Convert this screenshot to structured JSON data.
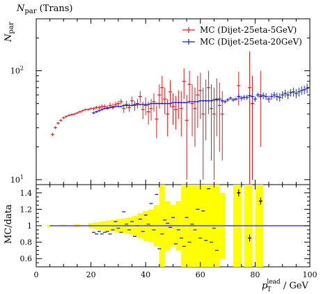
{
  "page": {
    "title": "N",
    "title_sub": "par",
    "title_rest": " (Trans)"
  },
  "upper_ylabel": "N",
  "upper_ylabel_sub": "par",
  "lower_ylabel": "MC/data",
  "xlabel_p": "p",
  "xlabel_sub": "T",
  "xlabel_sup": "lead",
  "xlabel_rest": " / GeV",
  "colors": {
    "series_red": "#e41a1c",
    "series_blue": "#1a1ae4",
    "ratio_band": "#ffff00",
    "ratio_line": "#1a1ae4"
  },
  "chart_data": [
    {
      "type": "scatter",
      "title": "Npar (Trans)",
      "xlabel": "",
      "ylabel": "Npar",
      "xlim": [
        0,
        100
      ],
      "ylim": [
        9,
        300
      ],
      "yscale": "log",
      "xtick_labels": [],
      "ytick_labels": [
        "10^1",
        "10^2"
      ],
      "legend_placement": "top-right",
      "series": [
        {
          "name": "MC (Dijet-25eta-5GeV)",
          "color": "#e41a1c",
          "points": [
            [
              6,
              26,
              1
            ],
            [
              7,
              30,
              1
            ],
            [
              8,
              33,
              1
            ],
            [
              9,
              35,
              1
            ],
            [
              10,
              37,
              1
            ],
            [
              11,
              38,
              1
            ],
            [
              12,
              39,
              1
            ],
            [
              13,
              39.5,
              1
            ],
            [
              14,
              40,
              1
            ],
            [
              15,
              41,
              1
            ],
            [
              16,
              42,
              1
            ],
            [
              17,
              43,
              1
            ],
            [
              18,
              44,
              1
            ],
            [
              19,
              44,
              1
            ],
            [
              20,
              45,
              1
            ],
            [
              21,
              45,
              1.5
            ],
            [
              22,
              46,
              1.5
            ],
            [
              23,
              46,
              2
            ],
            [
              24,
              47,
              2
            ],
            [
              25,
              47,
              2
            ],
            [
              26,
              46,
              2
            ],
            [
              27,
              48,
              3
            ],
            [
              28,
              47,
              3
            ],
            [
              29,
              49,
              3
            ],
            [
              30,
              50,
              3
            ],
            [
              31,
              52,
              3
            ],
            [
              32,
              45,
              4
            ],
            [
              33,
              49,
              4
            ],
            [
              34,
              46,
              4
            ],
            [
              35,
              53,
              5
            ],
            [
              36,
              48,
              5
            ],
            [
              37,
              50,
              5
            ],
            [
              38,
              58,
              7
            ],
            [
              39,
              44,
              8
            ],
            [
              40,
              48,
              9
            ],
            [
              41,
              42,
              10
            ],
            [
              42,
              45,
              10
            ],
            [
              43,
              52,
              10
            ],
            [
              44,
              36,
              12
            ],
            [
              45,
              60,
              15
            ],
            [
              46,
              70,
              20
            ],
            [
              47,
              55,
              15
            ],
            [
              48,
              40,
              15
            ],
            [
              49,
              64,
              18
            ],
            [
              50,
              47,
              15
            ],
            [
              51,
              44,
              15
            ],
            [
              52,
              51,
              15
            ],
            [
              53,
              45,
              20
            ],
            [
              54,
              80,
              25
            ],
            [
              55,
              35,
              25
            ],
            [
              56,
              75,
              25
            ],
            [
              57,
              50,
              25
            ],
            [
              58,
              45,
              25
            ],
            [
              59,
              60,
              30
            ],
            [
              60,
              66,
              30
            ],
            [
              61,
              40,
              30
            ],
            [
              62,
              53,
              30
            ],
            [
              63,
              70,
              30
            ],
            [
              64,
              45,
              30
            ],
            [
              65,
              40,
              30
            ],
            [
              66,
              55,
              30
            ],
            [
              67,
              48,
              30
            ],
            [
              68,
              40,
              25
            ],
            [
              74,
              73,
              25
            ],
            [
              78,
              70,
              80
            ],
            [
              79,
              50,
              40
            ],
            [
              82,
              60,
              40
            ]
          ]
        },
        {
          "name": "MC (Dijet-25eta-20GeV)",
          "color": "#1a1ae4",
          "points": [
            [
              21,
              41,
              1
            ],
            [
              22,
              42,
              1
            ],
            [
              23,
              43,
              1
            ],
            [
              24,
              44,
              1
            ],
            [
              25,
              45,
              1
            ],
            [
              26,
              45,
              1
            ],
            [
              27,
              46,
              1
            ],
            [
              28,
              46,
              1
            ],
            [
              29,
              47,
              1
            ],
            [
              30,
              47,
              1
            ],
            [
              31,
              47,
              1
            ],
            [
              32,
              48,
              1
            ],
            [
              33,
              48,
              1
            ],
            [
              34,
              48,
              1
            ],
            [
              35,
              48,
              1
            ],
            [
              36,
              49,
              1
            ],
            [
              37,
              49,
              1
            ],
            [
              38,
              49,
              1
            ],
            [
              39,
              49,
              1
            ],
            [
              40,
              49,
              1
            ],
            [
              41,
              49,
              1
            ],
            [
              42,
              50,
              1
            ],
            [
              43,
              50,
              1
            ],
            [
              44,
              50,
              1
            ],
            [
              45,
              50,
              1
            ],
            [
              46,
              50,
              1
            ],
            [
              47,
              50,
              1
            ],
            [
              48,
              50,
              1
            ],
            [
              49,
              50,
              1
            ],
            [
              50,
              51,
              1
            ],
            [
              51,
              51,
              1
            ],
            [
              52,
              51,
              1
            ],
            [
              53,
              51,
              1
            ],
            [
              54,
              51,
              1
            ],
            [
              55,
              51,
              1
            ],
            [
              56,
              52,
              1
            ],
            [
              57,
              52,
              1
            ],
            [
              58,
              52,
              1
            ],
            [
              59,
              52,
              1
            ],
            [
              60,
              53,
              1
            ],
            [
              61,
              53,
              1
            ],
            [
              62,
              53,
              1
            ],
            [
              63,
              53,
              1.5
            ],
            [
              64,
              53,
              1.5
            ],
            [
              65,
              54,
              1.5
            ],
            [
              66,
              54,
              2
            ],
            [
              67,
              55,
              2
            ],
            [
              68,
              53,
              2
            ],
            [
              69,
              52,
              2
            ],
            [
              70,
              54,
              2
            ],
            [
              71,
              56,
              2
            ],
            [
              72,
              54,
              2
            ],
            [
              73,
              55,
              2
            ],
            [
              74,
              58,
              3
            ],
            [
              75,
              56,
              3
            ],
            [
              76,
              57,
              3
            ],
            [
              77,
              57,
              3
            ],
            [
              78,
              59,
              3
            ],
            [
              79,
              58,
              3
            ],
            [
              80,
              55,
              3
            ],
            [
              81,
              60,
              3
            ],
            [
              82,
              58,
              3
            ],
            [
              83,
              59,
              4
            ],
            [
              84,
              58,
              4
            ],
            [
              85,
              55,
              4
            ],
            [
              86,
              58,
              4
            ],
            [
              87,
              60,
              4
            ],
            [
              88,
              58,
              5
            ],
            [
              89,
              57,
              5
            ],
            [
              90,
              60,
              5
            ],
            [
              91,
              62,
              5
            ],
            [
              92,
              60,
              5
            ],
            [
              93,
              63,
              5
            ],
            [
              94,
              64,
              6
            ],
            [
              95,
              62,
              6
            ],
            [
              96,
              64,
              6
            ],
            [
              97,
              66,
              6
            ],
            [
              98,
              67,
              6
            ],
            [
              99,
              69,
              7
            ]
          ]
        }
      ]
    },
    {
      "type": "scatter",
      "title": "",
      "xlabel": "pT lead / GeV",
      "ylabel": "MC/data",
      "xlim": [
        0,
        100
      ],
      "ylim": [
        0.5,
        1.5
      ],
      "xtick_labels": [
        "0",
        "20",
        "40",
        "60",
        "80",
        "100"
      ],
      "ytick_labels": [
        "0.6",
        "0.8",
        "1",
        "1.2",
        "1.4"
      ],
      "reference_line": 1.0,
      "band": [
        [
          5,
          0.01
        ],
        [
          10,
          0.01
        ],
        [
          15,
          0.02
        ],
        [
          20,
          0.03
        ],
        [
          22,
          0.04
        ],
        [
          24,
          0.05
        ],
        [
          26,
          0.06
        ],
        [
          28,
          0.07
        ],
        [
          30,
          0.08
        ],
        [
          32,
          0.09
        ],
        [
          34,
          0.1
        ],
        [
          36,
          0.12
        ],
        [
          38,
          0.15
        ],
        [
          40,
          0.18
        ],
        [
          42,
          0.2
        ],
        [
          44,
          0.25
        ],
        [
          46,
          0.5
        ],
        [
          48,
          0.3
        ],
        [
          50,
          0.25
        ],
        [
          52,
          0.3
        ],
        [
          54,
          0.5
        ],
        [
          56,
          0.5
        ],
        [
          58,
          0.5
        ],
        [
          60,
          0.5
        ],
        [
          62,
          0.5
        ],
        [
          64,
          0.5
        ],
        [
          66,
          0.5
        ],
        [
          68,
          0.4
        ],
        [
          73,
          0.5
        ],
        [
          74,
          0.5
        ],
        [
          77,
          0.5
        ],
        [
          78,
          0.5
        ],
        [
          81,
          0.5
        ],
        [
          82,
          0.5
        ]
      ],
      "points": [
        [
          21,
          0.92
        ],
        [
          22,
          0.9
        ],
        [
          23,
          0.93
        ],
        [
          24,
          0.9
        ],
        [
          25,
          0.92
        ],
        [
          26,
          0.93
        ],
        [
          27,
          0.9
        ],
        [
          28,
          0.95
        ],
        [
          29,
          1.05
        ],
        [
          30,
          0.97
        ],
        [
          31,
          0.92
        ],
        [
          32,
          1.17
        ],
        [
          33,
          1.02
        ],
        [
          34,
          0.95
        ],
        [
          35,
          1.05
        ],
        [
          36,
          0.87
        ],
        [
          37,
          1.0
        ],
        [
          38,
          1.08
        ],
        [
          39,
          0.93
        ],
        [
          40,
          1.13
        ],
        [
          41,
          1.02
        ],
        [
          42,
          1.27
        ],
        [
          43,
          0.95
        ],
        [
          44,
          1.38
        ],
        [
          45,
          0.72
        ],
        [
          46,
          0.9
        ],
        [
          47,
          1.07
        ],
        [
          48,
          1.03
        ],
        [
          49,
          0.98
        ],
        [
          50,
          1.1
        ],
        [
          51,
          0.78
        ],
        [
          52,
          0.95
        ],
        [
          53,
          0.85
        ],
        [
          54,
          0.75
        ],
        [
          55,
          1.1
        ],
        [
          56,
          0.8
        ],
        [
          57,
          1.02
        ],
        [
          58,
          0.95
        ],
        [
          59,
          1.2
        ],
        [
          60,
          0.85
        ],
        [
          61,
          1.18
        ],
        [
          62,
          0.82
        ],
        [
          63,
          1.45
        ],
        [
          64,
          0.8
        ],
        [
          65,
          0.97
        ],
        [
          66,
          0.7
        ],
        [
          74,
          1.4
        ],
        [
          78,
          0.85
        ],
        [
          82,
          1.3
        ]
      ]
    }
  ]
}
